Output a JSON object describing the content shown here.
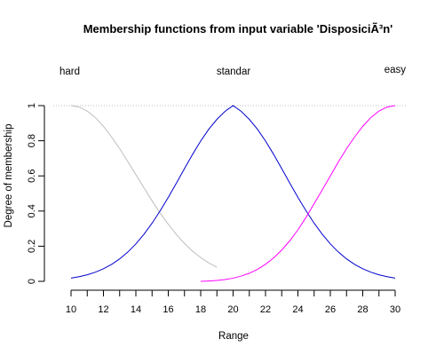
{
  "chart_data": {
    "type": "line",
    "title": "Membership functions from input variable 'DisposiciÃ³n'",
    "xlabel": "Range",
    "ylabel": "Degree of membership",
    "xlim": [
      10,
      30
    ],
    "ylim": [
      0,
      1
    ],
    "x_ticks": [
      10,
      11,
      12,
      13,
      14,
      15,
      16,
      17,
      18,
      19,
      20,
      21,
      22,
      23,
      24,
      25,
      26,
      27,
      28,
      29,
      30
    ],
    "x_tick_labels": [
      "10",
      "12",
      "14",
      "16",
      "18",
      "20",
      "22",
      "24",
      "26",
      "28",
      "30"
    ],
    "y_tick_labels": [
      "0",
      "0.2",
      "0.4",
      "0.6",
      "0.8",
      "1"
    ],
    "reference_line": {
      "y": 1,
      "style": "dotted",
      "color": "#bfbfbf"
    },
    "x": [
      10,
      10.5,
      11,
      11.5,
      12,
      12.5,
      13,
      13.5,
      14,
      14.5,
      15,
      15.5,
      16,
      16.5,
      17,
      17.5,
      18,
      18.5,
      19,
      19.5,
      20,
      20.5,
      21,
      21.5,
      22,
      22.5,
      23,
      23.5,
      24,
      24.5,
      25,
      25.5,
      26,
      26.5,
      27,
      27.5,
      28,
      28.5,
      29,
      29.5,
      30
    ],
    "series": [
      {
        "name": "hard",
        "color": "#bebebe",
        "values": [
          1.0,
          0.992,
          0.969,
          0.932,
          0.882,
          0.822,
          0.755,
          0.682,
          0.607,
          0.532,
          0.458,
          0.388,
          0.325,
          0.266,
          0.216,
          0.172,
          0.135,
          0.105,
          0.08,
          null,
          null,
          null,
          null,
          null,
          null,
          null,
          null,
          null,
          null,
          null,
          null,
          null,
          null,
          null,
          null,
          null,
          null,
          null,
          null,
          null,
          null
        ]
      },
      {
        "name": "standar",
        "color": "#0000cd",
        "values": [
          0.0183,
          0.0263,
          0.0373,
          0.0521,
          0.0714,
          0.0963,
          0.1278,
          0.1664,
          0.2131,
          0.2681,
          0.3309,
          0.4013,
          0.4778,
          0.5587,
          0.6412,
          0.7225,
          0.7985,
          0.8659,
          0.9216,
          0.9672,
          1.0,
          0.9672,
          0.9216,
          0.8659,
          0.7985,
          0.7225,
          0.6412,
          0.5587,
          0.4778,
          0.4013,
          0.3309,
          0.2681,
          0.2131,
          0.1664,
          0.1278,
          0.0963,
          0.0714,
          0.0521,
          0.0373,
          0.0263,
          0.0183
        ]
      },
      {
        "name": "easy",
        "color": "#ff00ff",
        "values": [
          null,
          null,
          null,
          null,
          null,
          null,
          null,
          null,
          null,
          null,
          null,
          null,
          null,
          null,
          null,
          null,
          0.0,
          0.002,
          0.005,
          0.01,
          0.018,
          0.03,
          0.046,
          0.068,
          0.097,
          0.133,
          0.178,
          0.231,
          0.293,
          0.364,
          0.442,
          0.52,
          0.6,
          0.68,
          0.755,
          0.822,
          0.882,
          0.932,
          0.969,
          0.992,
          1.0
        ]
      }
    ],
    "series_labels": [
      "hard",
      "standar",
      "easy"
    ]
  }
}
